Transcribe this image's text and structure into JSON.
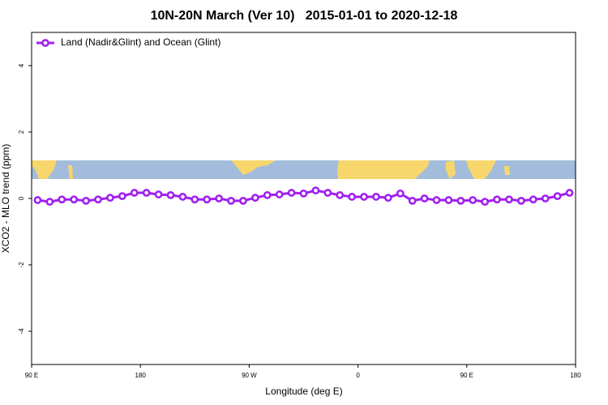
{
  "chart_data": {
    "type": "line",
    "title": "10N-20N March (Ver 10)   2015-01-01 to 2020-12-18",
    "x_label": "Longitude (deg E)",
    "y_label": "XCO2 - MLO trend (ppm)",
    "x": [
      95,
      105,
      115,
      125,
      135,
      145,
      155,
      165,
      175,
      185,
      195,
      205,
      215,
      225,
      235,
      245,
      255,
      265,
      275,
      285,
      295,
      305,
      315,
      325,
      335,
      345,
      355,
      365,
      375,
      385,
      395,
      405,
      415,
      425,
      435,
      445,
      455,
      465,
      475,
      485,
      495,
      505,
      515,
      525,
      535
    ],
    "series": [
      {
        "name": "Land (Nadir&Glint) and Ocean (Glint)",
        "color": "#a020f0",
        "values": [
          -0.05,
          -0.1,
          -0.03,
          -0.03,
          -0.07,
          -0.03,
          0.02,
          0.07,
          0.17,
          0.17,
          0.12,
          0.1,
          0.05,
          -0.03,
          -0.03,
          0,
          -0.07,
          -0.07,
          0.02,
          0.1,
          0.12,
          0.17,
          0.15,
          0.24,
          0.17,
          0.1,
          0.05,
          0.05,
          0.05,
          0.02,
          0.15,
          -0.07,
          0,
          -0.05,
          -0.05,
          -0.07,
          -0.05,
          -0.1,
          -0.03,
          -0.03,
          -0.07,
          -0.03,
          0,
          0.07,
          0.17
        ]
      }
    ],
    "xlim": [
      90,
      540
    ],
    "xticks": [
      {
        "value": 90,
        "label": "90 E"
      },
      180,
      {
        "value": 270,
        "label": "90 W"
      },
      {
        "value": 360,
        "label": "0"
      },
      {
        "value": 450,
        "label": "90 E"
      },
      {
        "value": 540,
        "label": "180"
      }
    ],
    "ylim": [
      -5,
      5
    ],
    "yticks": [
      -4,
      -2,
      0,
      2,
      4
    ],
    "legend": "top-left"
  }
}
